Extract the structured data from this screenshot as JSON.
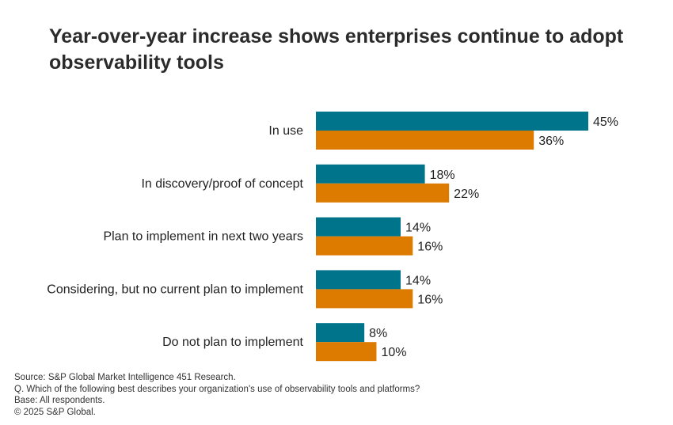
{
  "chart_data": {
    "type": "bar",
    "orientation": "horizontal",
    "title": "Year-over-year increase shows enterprises continue to adopt observability tools",
    "categories": [
      "In use",
      "In discovery/proof of concept",
      "Plan to implement in next two years",
      "Considering, but no current plan to implement",
      "Do not plan to implement"
    ],
    "series": [
      {
        "values": [
          45,
          18,
          14,
          14,
          8
        ],
        "color": "#00748b"
      },
      {
        "values": [
          36,
          22,
          16,
          16,
          10
        ],
        "color": "#dd7a00"
      }
    ],
    "value_suffix": "%",
    "xlim": [
      0,
      45
    ],
    "grid": false,
    "legend": "none"
  },
  "footer": {
    "source": "Source: S&P Global Market Intelligence 451 Research.",
    "question": "Q. Which of the following best describes your organization's use of observability tools and platforms?",
    "base": "Base: All respondents.",
    "copyright": "© 2025 S&P Global."
  }
}
